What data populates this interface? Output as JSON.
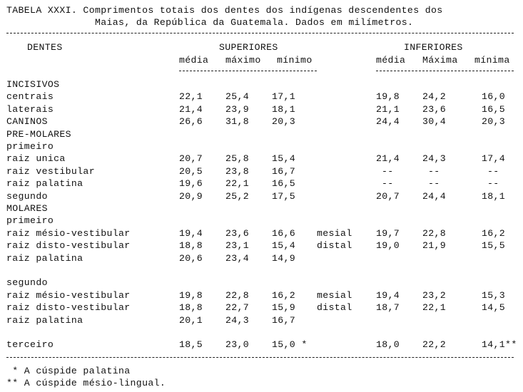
{
  "title": {
    "line1": "TABELA XXXI. Comprimentos totais dos dentes dos indígenas descendentes dos",
    "line2": "Maias, da República da Guatemala. Dados em milímetros."
  },
  "header": {
    "dentes": "DENTES",
    "superiores": "SUPERIORES",
    "inferiores": "INFERIORES",
    "sup_cols": [
      "média",
      "máximo",
      "mínimo"
    ],
    "inf_cols": [
      "média",
      "Máxima",
      "mínima"
    ]
  },
  "rows": [
    {
      "label": "INCISIVOS"
    },
    {
      "label": "centrais",
      "s": [
        "22,1",
        "25,4",
        "17,1"
      ],
      "i": [
        "19,8",
        "24,2",
        "16,0"
      ]
    },
    {
      "label": "laterais",
      "s": [
        "21,4",
        "23,9",
        "18,1"
      ],
      "i": [
        "21,1",
        "23,6",
        "16,5"
      ]
    },
    {
      "label": "CANINOS",
      "s": [
        "26,6",
        "31,8",
        "20,3"
      ],
      "i": [
        "24,4",
        "30,4",
        "20,3"
      ]
    },
    {
      "label": "PRE-MOLARES"
    },
    {
      "label": "primeiro"
    },
    {
      "label": "raiz unica",
      "s": [
        "20,7",
        "25,8",
        "15,4"
      ],
      "i": [
        "21,4",
        "24,3",
        "17,4"
      ]
    },
    {
      "label": "raiz vestibular",
      "s": [
        "20,5",
        "23,8",
        "16,7"
      ],
      "i": [
        "--",
        "--",
        "--"
      ]
    },
    {
      "label": "raiz palatina",
      "s": [
        "19,6",
        "22,1",
        "16,5"
      ],
      "i": [
        "--",
        "--",
        "--"
      ]
    },
    {
      "label": "segundo",
      "s": [
        "20,9",
        "25,2",
        "17,5"
      ],
      "i": [
        "20,7",
        "24,4",
        "18,1"
      ]
    },
    {
      "label": "MOLARES"
    },
    {
      "label": "primeiro"
    },
    {
      "label": "raiz mésio-vestibular",
      "s": [
        "19,4",
        "23,6",
        "16,6"
      ],
      "note": "mesial",
      "i": [
        "19,7",
        "22,8",
        "16,2"
      ]
    },
    {
      "label": "raiz disto-vestibular",
      "s": [
        "18,8",
        "23,1",
        "15,4"
      ],
      "note": "distal",
      "i": [
        "19,0",
        "21,9",
        "15,5"
      ]
    },
    {
      "label": "raiz palatina",
      "s": [
        "20,6",
        "23,4",
        "14,9"
      ]
    },
    {
      "label": ""
    },
    {
      "label": "segundo"
    },
    {
      "label": "raiz mésio-vestibular",
      "s": [
        "19,8",
        "22,8",
        "16,2"
      ],
      "note": "mesial",
      "i": [
        "19,4",
        "23,2",
        "15,3"
      ]
    },
    {
      "label": "raiz disto-vestibular",
      "s": [
        "18,8",
        "22,7",
        "15,9"
      ],
      "note": "distal",
      "i": [
        "18,7",
        "22,1",
        "14,5"
      ]
    },
    {
      "label": "raiz palatina",
      "s": [
        "20,1",
        "24,3",
        "16,7"
      ]
    },
    {
      "label": ""
    },
    {
      "label": "terceiro",
      "s": [
        "18,5",
        "23,0",
        "15,0 *"
      ],
      "i": [
        "18,0",
        "22,2",
        "14,1**"
      ]
    }
  ],
  "footnotes": [
    " * A cúspide palatina",
    "** A cúspide mésio-lingual."
  ]
}
